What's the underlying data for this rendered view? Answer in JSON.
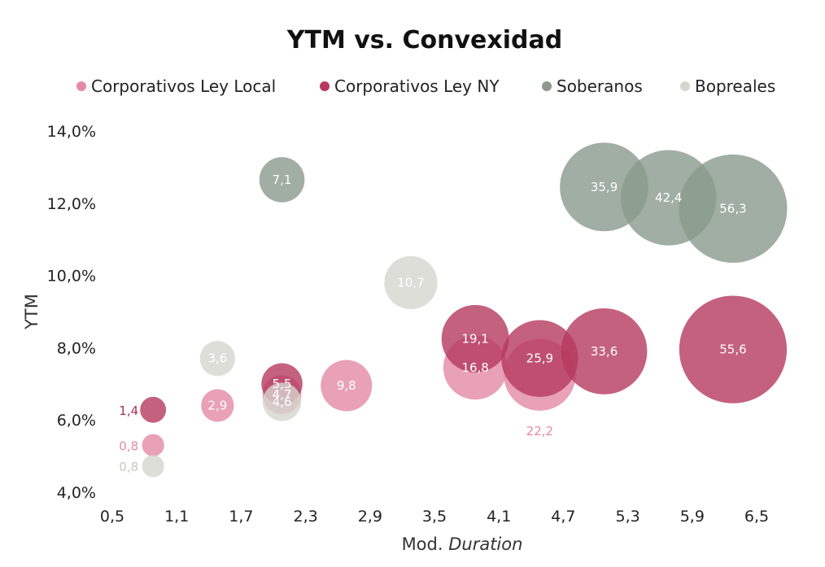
{
  "chart_data": {
    "type": "scatter",
    "title": "YTM vs. Convexidad",
    "xlabel_prefix": "Mod. ",
    "xlabel_italic": "Duration",
    "ylabel": "YTM",
    "xlim": [
      0.5,
      6.5
    ],
    "ylim": [
      4.0,
      14.0
    ],
    "x_ticks": [
      "0,5",
      "1,1",
      "1,7",
      "2,3",
      "2,9",
      "3,5",
      "4,1",
      "4,7",
      "5,3",
      "5,9",
      "6,5"
    ],
    "y_ticks": [
      "4,0%",
      "6,0%",
      "8,0%",
      "10,0%",
      "12,0%",
      "14,0%"
    ],
    "legend_position": "top",
    "size_encoding": "convexity",
    "series": [
      {
        "name": "Corporativos Ley Local",
        "color": "#e48aa6",
        "points": [
          {
            "x": 0.88,
            "y": 5.3,
            "size": 0.8,
            "label": "0,8"
          },
          {
            "x": 1.48,
            "y": 6.4,
            "size": 2.9,
            "label": "2,9"
          },
          {
            "x": 2.08,
            "y": 6.7,
            "size": 4.7,
            "label": "4,7"
          },
          {
            "x": 2.68,
            "y": 6.95,
            "size": 9.8,
            "label": "9,8"
          },
          {
            "x": 3.88,
            "y": 7.45,
            "size": 16.8,
            "label": "16,8"
          },
          {
            "x": 4.48,
            "y": 7.25,
            "size": 22.2,
            "label": "22,2"
          }
        ]
      },
      {
        "name": "Corporativos Ley NY",
        "color": "#b5395e",
        "points": [
          {
            "x": 0.88,
            "y": 6.28,
            "size": 1.4,
            "label": "1,4"
          },
          {
            "x": 2.08,
            "y": 7.0,
            "size": 5.5,
            "label": "5,5"
          },
          {
            "x": 3.88,
            "y": 8.25,
            "size": 19.1,
            "label": "19,1"
          },
          {
            "x": 4.48,
            "y": 7.7,
            "size": 25.9,
            "label": "25,9"
          },
          {
            "x": 5.08,
            "y": 7.9,
            "size": 33.6,
            "label": "33,6"
          },
          {
            "x": 6.28,
            "y": 7.95,
            "size": 55.6,
            "label": "55,6"
          }
        ]
      },
      {
        "name": "Soberanos",
        "color": "#8a9a8c",
        "points": [
          {
            "x": 2.08,
            "y": 12.65,
            "size": 7.1,
            "label": "7,1"
          },
          {
            "x": 5.08,
            "y": 12.45,
            "size": 35.9,
            "label": "35,9"
          },
          {
            "x": 5.68,
            "y": 12.15,
            "size": 42.4,
            "label": "42,4"
          },
          {
            "x": 6.28,
            "y": 11.85,
            "size": 56.3,
            "label": "56,3"
          }
        ]
      },
      {
        "name": "Bopreales",
        "color": "#d6d6cf",
        "points": [
          {
            "x": 0.88,
            "y": 4.72,
            "size": 0.8,
            "label": "0,8"
          },
          {
            "x": 1.48,
            "y": 7.7,
            "size": 3.6,
            "label": "3,6"
          },
          {
            "x": 2.08,
            "y": 6.5,
            "size": 4.6,
            "label": "4,6"
          },
          {
            "x": 3.28,
            "y": 9.8,
            "size": 10.7,
            "label": "10,7"
          }
        ]
      }
    ]
  }
}
